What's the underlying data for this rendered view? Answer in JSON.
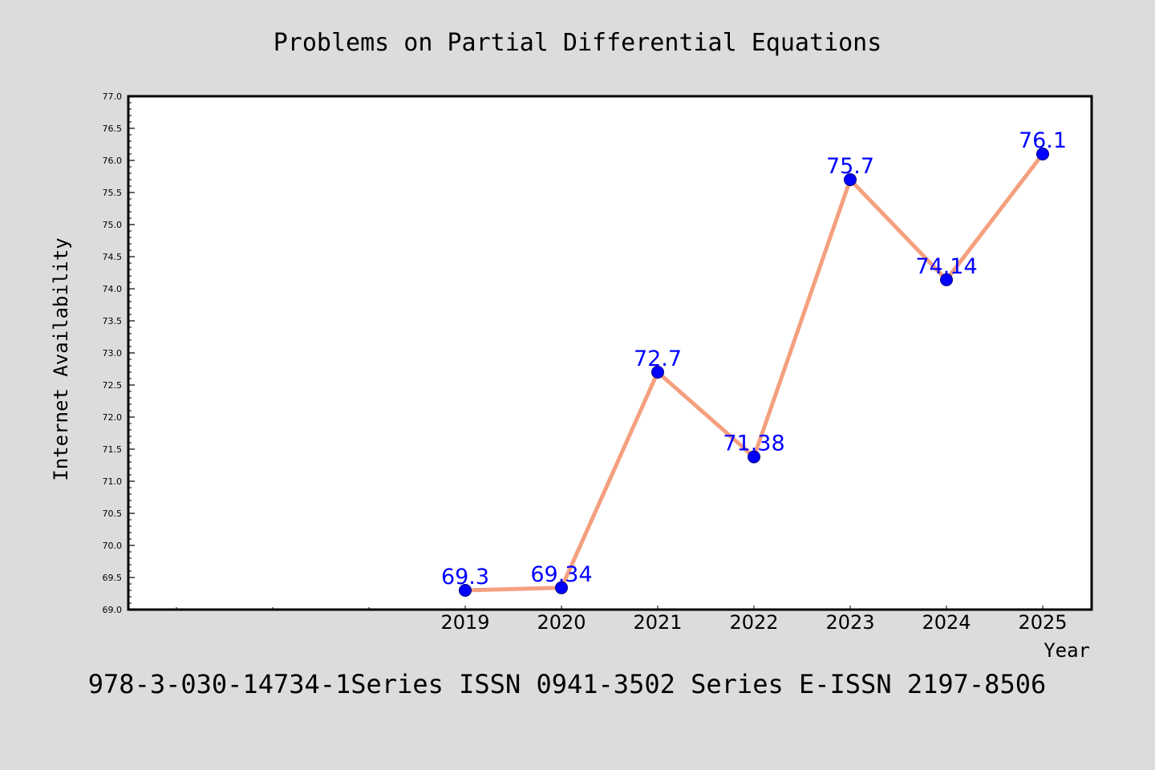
{
  "colors": {
    "background": "#dcdcdc",
    "plot_background": "#ffffff",
    "line": "#f4a07f",
    "marker": "#0000ff",
    "data_label": "#0000ff"
  },
  "footer_text": "978-3-030-14734-1Series ISSN 0941-3502 Series E-ISSN 2197-8506",
  "chart_data": {
    "type": "line",
    "title": "Problems on Partial Differential Equations",
    "xlabel": "Year",
    "ylabel": "Internet Availability",
    "ylim": [
      69.0,
      77.0
    ],
    "y_ticks": [
      "69.0",
      "69.5",
      "70.0",
      "70.5",
      "71.0",
      "71.5",
      "72.0",
      "72.5",
      "73.0",
      "73.5",
      "74.0",
      "74.5",
      "75.0",
      "75.5",
      "76.0",
      "76.5",
      "77.0"
    ],
    "x": [
      "2019",
      "2020",
      "2021",
      "2022",
      "2023",
      "2024",
      "2025"
    ],
    "values": [
      69.3,
      69.34,
      72.7,
      71.38,
      75.7,
      74.14,
      76.1
    ],
    "data_labels": [
      "69.3",
      "69.34",
      "72.7",
      "71.38",
      "75.7",
      "74.14",
      "76.1"
    ],
    "grid": false,
    "legend": "none"
  }
}
